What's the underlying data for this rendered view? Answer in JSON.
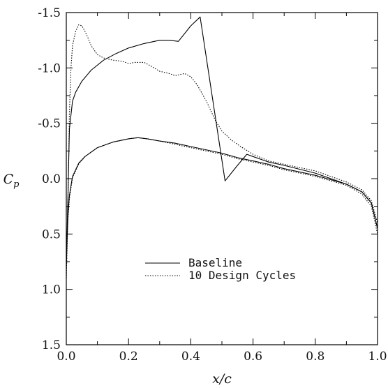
{
  "chart_data": {
    "type": "line",
    "title": "",
    "xlabel": "x/c",
    "ylabel": "C",
    "ylabel_subscript": "p",
    "xlim": [
      0.0,
      1.0
    ],
    "ylim": [
      1.5,
      -1.5
    ],
    "y_inverted": true,
    "grid": false,
    "legend_position": "center-left",
    "x_ticks": [
      0.0,
      0.2,
      0.4,
      0.6,
      0.8,
      1.0
    ],
    "x_tick_labels": [
      "0.0",
      "0.2",
      "0.4",
      "0.6",
      "0.8",
      "1.0"
    ],
    "y_ticks": [
      -1.5,
      -1.0,
      -0.5,
      0.0,
      0.5,
      1.0,
      1.5
    ],
    "y_tick_labels": [
      "-1.5",
      "-1.0",
      "-0.5",
      "0.0",
      "0.5",
      "1.0",
      "1.5"
    ],
    "series": [
      {
        "name": "Baseline",
        "style": "solid",
        "upper": {
          "x": [
            0.0,
            0.005,
            0.01,
            0.02,
            0.03,
            0.05,
            0.08,
            0.12,
            0.16,
            0.2,
            0.25,
            0.3,
            0.33,
            0.36,
            0.4,
            0.43,
            0.51,
            0.55,
            0.58,
            0.6,
            0.65,
            0.7,
            0.8,
            0.9,
            0.95,
            0.98,
            1.0
          ],
          "y": [
            0.8,
            0.2,
            -0.45,
            -0.7,
            -0.78,
            -0.88,
            -0.98,
            -1.07,
            -1.13,
            -1.18,
            -1.22,
            -1.25,
            -1.25,
            -1.24,
            -1.38,
            -1.46,
            0.02,
            -0.12,
            -0.22,
            -0.2,
            -0.15,
            -0.12,
            -0.05,
            0.05,
            0.12,
            0.22,
            0.45
          ]
        },
        "lower": {
          "x": [
            0.0,
            0.005,
            0.01,
            0.02,
            0.04,
            0.06,
            0.1,
            0.15,
            0.2,
            0.23,
            0.26,
            0.3,
            0.35,
            0.4,
            0.5,
            0.55,
            0.6,
            0.65,
            0.7,
            0.8,
            0.9,
            0.95,
            0.98,
            1.0
          ],
          "y": [
            0.8,
            0.35,
            0.15,
            -0.02,
            -0.14,
            -0.2,
            -0.28,
            -0.33,
            -0.36,
            -0.37,
            -0.36,
            -0.34,
            -0.32,
            -0.29,
            -0.23,
            -0.19,
            -0.16,
            -0.13,
            -0.09,
            -0.03,
            0.05,
            0.12,
            0.22,
            0.45
          ]
        }
      },
      {
        "name": "10 Design Cycles",
        "style": "dotted",
        "upper": {
          "x": [
            0.0,
            0.005,
            0.01,
            0.015,
            0.02,
            0.03,
            0.04,
            0.05,
            0.06,
            0.07,
            0.08,
            0.1,
            0.12,
            0.15,
            0.18,
            0.2,
            0.22,
            0.25,
            0.27,
            0.3,
            0.33,
            0.35,
            0.38,
            0.4,
            0.42,
            0.45,
            0.48,
            0.5,
            0.53,
            0.56,
            0.6,
            0.65,
            0.7,
            0.8,
            0.9,
            0.95,
            0.98,
            1.0
          ],
          "y": [
            0.9,
            0.3,
            -0.6,
            -1.0,
            -1.2,
            -1.33,
            -1.39,
            -1.38,
            -1.33,
            -1.27,
            -1.2,
            -1.12,
            -1.09,
            -1.07,
            -1.06,
            -1.04,
            -1.05,
            -1.05,
            -1.02,
            -0.97,
            -0.95,
            -0.93,
            -0.95,
            -0.92,
            -0.85,
            -0.7,
            -0.52,
            -0.43,
            -0.35,
            -0.29,
            -0.22,
            -0.16,
            -0.13,
            -0.07,
            0.03,
            0.1,
            0.2,
            0.4
          ]
        },
        "lower": {
          "x": [
            0.0,
            0.005,
            0.01,
            0.02,
            0.04,
            0.06,
            0.1,
            0.15,
            0.2,
            0.23,
            0.26,
            0.3,
            0.35,
            0.4,
            0.5,
            0.55,
            0.6,
            0.65,
            0.7,
            0.8,
            0.9,
            0.95,
            0.98,
            1.0
          ],
          "y": [
            0.9,
            0.38,
            0.18,
            -0.01,
            -0.13,
            -0.2,
            -0.28,
            -0.33,
            -0.36,
            -0.37,
            -0.36,
            -0.34,
            -0.31,
            -0.28,
            -0.22,
            -0.18,
            -0.15,
            -0.12,
            -0.08,
            -0.02,
            0.06,
            0.14,
            0.25,
            0.5
          ]
        }
      }
    ]
  }
}
